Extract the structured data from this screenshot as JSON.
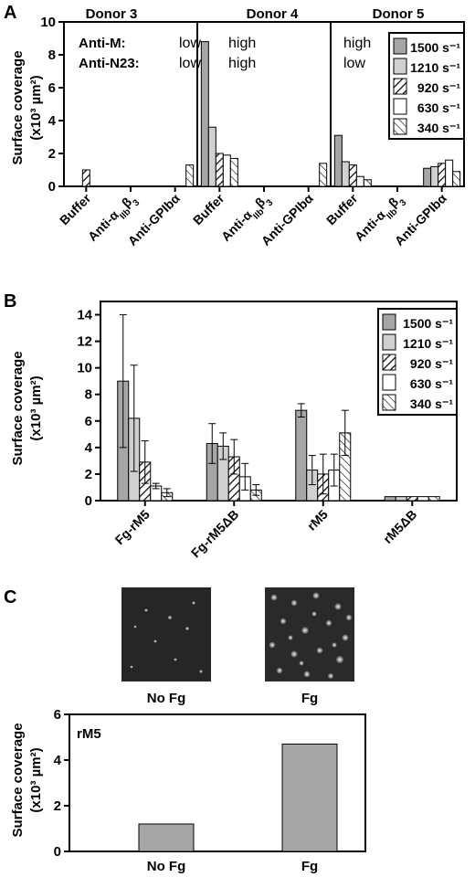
{
  "panels": {
    "A": {
      "letter": "A",
      "donors": [
        "Donor 3",
        "Donor 4",
        "Donor 5"
      ],
      "rows": [
        {
          "label": "Anti-M:",
          "values": [
            "low",
            "high",
            "high"
          ]
        },
        {
          "label": "Anti-N23:",
          "values": [
            "low",
            "high",
            "low"
          ]
        }
      ],
      "ylabel_line1": "Surface coverage",
      "ylabel_line2": "(x10³ µm²)"
    },
    "B": {
      "letter": "B",
      "ylabel_line1": "Surface coverage",
      "ylabel_line2": "(x10³ µm²)"
    },
    "C": {
      "letter": "C",
      "ylabel_line1": "Surface coverage",
      "ylabel_line2": "(x10³ µm²)",
      "image_labels": [
        "No Fg",
        "Fg"
      ],
      "inset_label": "rM5"
    }
  },
  "legend": [
    "1500 s⁻¹",
    "1210 s⁻¹",
    "920 s⁻¹",
    "630 s⁻¹",
    "340 s⁻¹"
  ],
  "chart_data": [
    {
      "type": "bar",
      "panel": "A",
      "categories": [
        "Buffer",
        "Anti-αIIbβ3",
        "Anti-GPIbα",
        "Buffer",
        "Anti-αIIbβ3",
        "Anti-GPIbα",
        "Buffer",
        "Anti-αIIbβ3",
        "Anti-GPIbα"
      ],
      "groups": [
        "Donor 3",
        "Donor 3",
        "Donor 3",
        "Donor 4",
        "Donor 4",
        "Donor 4",
        "Donor 5",
        "Donor 5",
        "Donor 5"
      ],
      "series": [
        {
          "name": "1500 s⁻¹",
          "values": [
            0,
            0,
            0,
            8.8,
            0,
            0,
            3.1,
            0,
            1.1
          ]
        },
        {
          "name": "1210 s⁻¹",
          "values": [
            0,
            0,
            0,
            3.6,
            0,
            0,
            1.5,
            0,
            1.2
          ]
        },
        {
          "name": "920 s⁻¹",
          "values": [
            1.0,
            0,
            0,
            2.0,
            0,
            0,
            1.3,
            0,
            1.4
          ]
        },
        {
          "name": "630 s⁻¹",
          "values": [
            0,
            0,
            0,
            1.9,
            0,
            0,
            0.6,
            0,
            1.6
          ]
        },
        {
          "name": "340 s⁻¹",
          "values": [
            0,
            0,
            1.3,
            1.7,
            0,
            1.4,
            0.4,
            0,
            0.9
          ]
        }
      ],
      "ylim": [
        0,
        10
      ],
      "yticks": [
        0,
        2,
        4,
        6,
        8,
        10
      ],
      "legend_position": "top-right"
    },
    {
      "type": "bar",
      "panel": "B",
      "categories": [
        "Fg-rM5",
        "Fg-rM5ΔB",
        "rM5",
        "rM5ΔB"
      ],
      "series": [
        {
          "name": "1500 s⁻¹",
          "values": [
            9.0,
            4.3,
            6.8,
            0.3
          ],
          "errors": [
            5.0,
            1.5,
            0.5,
            0
          ]
        },
        {
          "name": "1210 s⁻¹",
          "values": [
            6.2,
            4.1,
            2.3,
            0.3
          ],
          "errors": [
            4.0,
            1.0,
            1.1,
            0
          ]
        },
        {
          "name": "920 s⁻¹",
          "values": [
            2.9,
            3.3,
            2.0,
            0.3
          ],
          "errors": [
            1.6,
            1.3,
            1.5,
            0
          ]
        },
        {
          "name": "630 s⁻¹",
          "values": [
            1.1,
            1.8,
            2.3,
            0.3
          ],
          "errors": [
            0.2,
            1.0,
            1.2,
            0
          ]
        },
        {
          "name": "340 s⁻¹",
          "values": [
            0.6,
            0.8,
            5.1,
            0.3
          ],
          "errors": [
            0.3,
            0.4,
            1.7,
            0
          ]
        }
      ],
      "ylim": [
        0,
        15
      ],
      "yticks": [
        0,
        2,
        4,
        6,
        8,
        10,
        12,
        14
      ],
      "legend_position": "top-right"
    },
    {
      "type": "bar",
      "panel": "C",
      "categories": [
        "No Fg",
        "Fg"
      ],
      "values": [
        1.2,
        4.7
      ],
      "ylim": [
        0,
        6
      ],
      "yticks": [
        0,
        2,
        4,
        6
      ]
    }
  ]
}
